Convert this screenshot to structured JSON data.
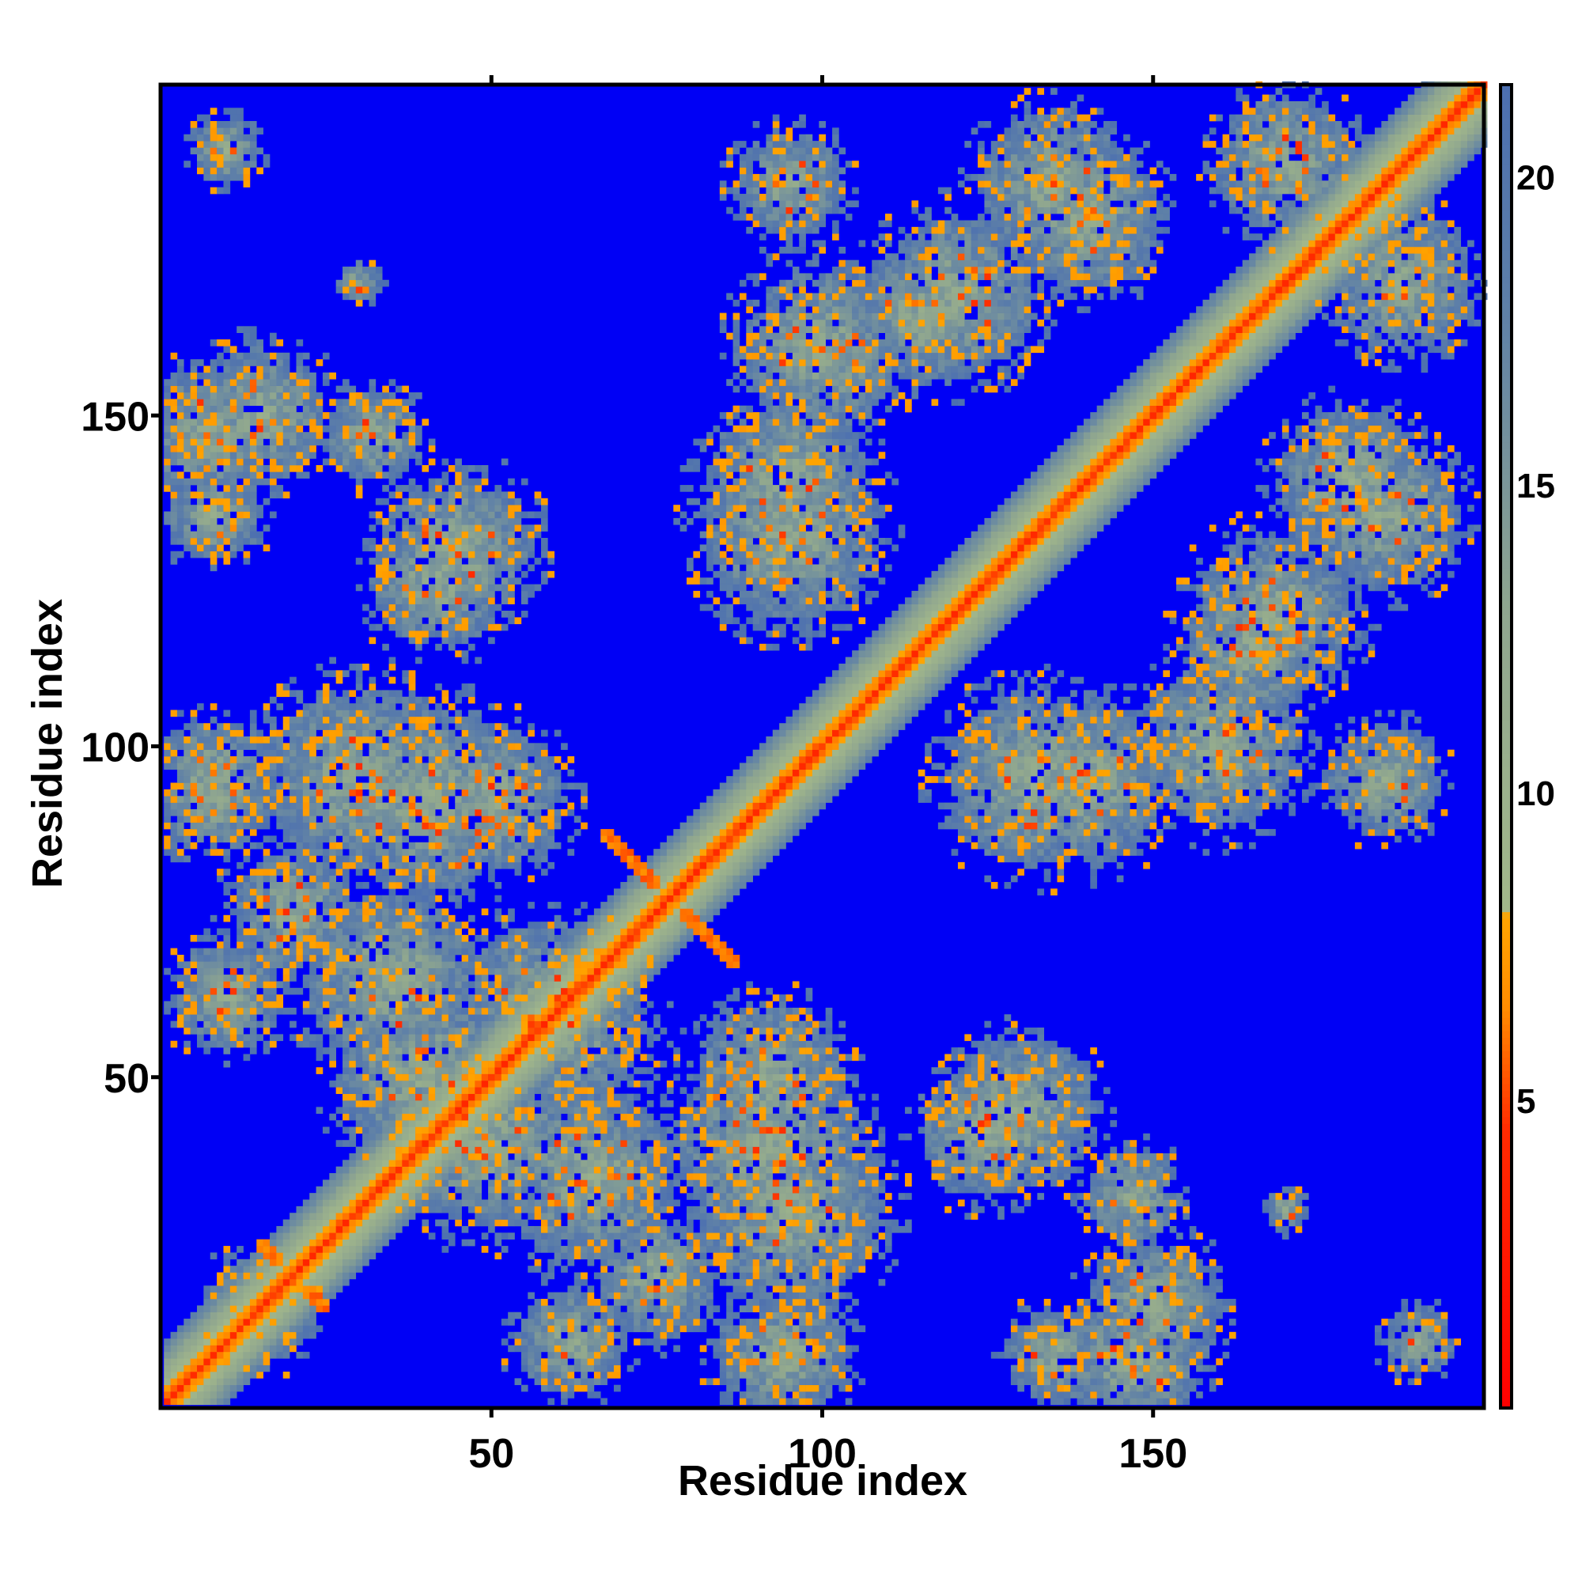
{
  "chart_data": {
    "type": "heatmap",
    "title": "",
    "xlabel": "Residue index",
    "ylabel": "Residue index",
    "n_residues": 200,
    "xlim": [
      1,
      200
    ],
    "ylim": [
      1,
      200
    ],
    "x_ticks": [
      50,
      100,
      150
    ],
    "y_ticks": [
      50,
      100,
      150
    ],
    "colorbar": {
      "ticks": [
        5,
        10,
        15,
        20
      ],
      "range": [
        0,
        21.5
      ],
      "stops": [
        {
          "value": 0,
          "color": "#ff0000"
        },
        {
          "value": 4.5,
          "color": "#ff2a00"
        },
        {
          "value": 6.5,
          "color": "#ff8c00"
        },
        {
          "value": 8.0,
          "color": "#ffa500"
        },
        {
          "value": 8.1,
          "color": "#a3b88a"
        },
        {
          "value": 13.0,
          "color": "#8fa68f"
        },
        {
          "value": 18.0,
          "color": "#5d7fa8"
        },
        {
          "value": 21.5,
          "color": "#4c6fb0"
        }
      ],
      "background_color": "#0000f5"
    },
    "distance_model": {
      "diagonal_band": {
        "core": 2,
        "mid": 7,
        "edge": 9
      },
      "contact_clusters": [
        {
          "i": 30,
          "j": 95,
          "radius": 14
        },
        {
          "i": 50,
          "j": 92,
          "radius": 11
        },
        {
          "i": 7,
          "j": 147,
          "radius": 10
        },
        {
          "i": 32,
          "j": 147,
          "radius": 7
        },
        {
          "i": 42,
          "j": 125,
          "radius": 10
        },
        {
          "i": 8,
          "j": 93,
          "radius": 9
        },
        {
          "i": 35,
          "j": 65,
          "radius": 13
        },
        {
          "i": 50,
          "j": 40,
          "radius": 13
        },
        {
          "i": 58,
          "j": 60,
          "radius": 13
        },
        {
          "i": 92,
          "j": 40,
          "radius": 14
        },
        {
          "i": 95,
          "j": 132,
          "radius": 13
        },
        {
          "i": 100,
          "j": 160,
          "radius": 12
        },
        {
          "i": 115,
          "j": 165,
          "radius": 10
        },
        {
          "i": 135,
          "j": 185,
          "radius": 11
        },
        {
          "i": 130,
          "j": 45,
          "radius": 11
        },
        {
          "i": 140,
          "j": 95,
          "radius": 12
        },
        {
          "i": 160,
          "j": 100,
          "radius": 12
        },
        {
          "i": 168,
          "j": 120,
          "radius": 12
        },
        {
          "i": 180,
          "j": 140,
          "radius": 11
        },
        {
          "i": 188,
          "j": 170,
          "radius": 10
        },
        {
          "i": 150,
          "j": 15,
          "radius": 10
        },
        {
          "i": 135,
          "j": 8,
          "radius": 7
        },
        {
          "i": 95,
          "j": 8,
          "radius": 9
        },
        {
          "i": 62,
          "j": 10,
          "radius": 8
        },
        {
          "i": 185,
          "j": 95,
          "radius": 8
        },
        {
          "i": 170,
          "j": 188,
          "radius": 10
        },
        {
          "i": 190,
          "j": 10,
          "radius": 5
        },
        {
          "i": 30,
          "j": 170,
          "radius": 3
        },
        {
          "i": 20,
          "j": 75,
          "radius": 9
        },
        {
          "i": 15,
          "j": 15,
          "radius": 8
        }
      ],
      "antiparallel_strands": [
        {
          "center_i": 77,
          "center_j": 77,
          "half_length": 10
        },
        {
          "center_i": 20,
          "center_j": 20,
          "half_length": 5
        }
      ],
      "parallel_strands": [
        {
          "i_start": 45,
          "j_start": 82,
          "length": 8
        },
        {
          "i_start": 82,
          "j_start": 45,
          "length": 8
        }
      ]
    }
  }
}
